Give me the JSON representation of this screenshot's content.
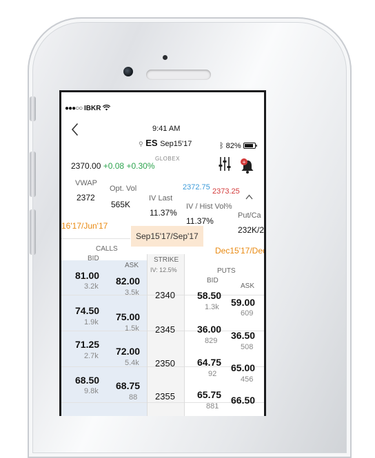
{
  "status_bar": {
    "carrier": "IBKR",
    "time": "9:41 AM",
    "battery": "82%"
  },
  "header": {
    "symbol": "ES",
    "contract": "Sep15'17",
    "exchange": "GLOBEX"
  },
  "quote": {
    "last": "2370.00",
    "change": "+0.08",
    "change_pct": "+0.30%",
    "bid": "2372.75",
    "ask": "2373.25"
  },
  "metrics": [
    {
      "label": "VWAP",
      "value": "2372"
    },
    {
      "label": "Opt. Vol",
      "value": "565K"
    },
    {
      "label": "IV Last",
      "value": "11.37%"
    },
    {
      "label": "IV / Hist Vol%",
      "value": "11.37%"
    },
    {
      "label": "Put/Ca",
      "value": "232K/2"
    }
  ],
  "expiries": {
    "left": "16'17/Jun'17",
    "selected": "Sep15'17/Sep'17",
    "right": "Dec15'17/Dec"
  },
  "columns": {
    "calls": "CALLS",
    "puts": "PUTS",
    "bid": "BID",
    "ask": "ASK",
    "strike": "STRIKE",
    "iv": "IV: 12.5%"
  },
  "rows": [
    {
      "call_bid": "81.00",
      "call_bid_size": "3.2k",
      "call_ask": "82.00",
      "call_ask_size": "3.5k",
      "strike": "2340",
      "put_bid": "58.50",
      "put_bid_size": "1.3k",
      "put_ask": "59.00",
      "put_ask_size": "609"
    },
    {
      "call_bid": "74.50",
      "call_bid_size": "1.9k",
      "call_ask": "75.00",
      "call_ask_size": "1.5k",
      "strike": "2345",
      "put_bid": "36.00",
      "put_bid_size": "829",
      "put_ask": "36.50",
      "put_ask_size": "508"
    },
    {
      "call_bid": "71.25",
      "call_bid_size": "2.7k",
      "call_ask": "72.00",
      "call_ask_size": "5.4k",
      "strike": "2350",
      "put_bid": "64.75",
      "put_bid_size": "92",
      "put_ask": "65.00",
      "put_ask_size": "456"
    },
    {
      "call_bid": "68.50",
      "call_bid_size": "9.8k",
      "call_ask": "68.75",
      "call_ask_size": "88",
      "strike": "2355",
      "put_bid": "65.75",
      "put_bid_size": "881",
      "put_ask": "66.50",
      "put_ask_size": ""
    }
  ],
  "icons": [
    "back-chevron-icon",
    "search-icon",
    "bluetooth-icon",
    "battery-icon",
    "wifi-icon",
    "settings-sliders-icon",
    "alert-bell-icon",
    "collapse-chevron-icon"
  ],
  "colors": {
    "gain": "#2ea44f",
    "loss": "#d33a3a",
    "bid_blue": "#3b9ad9",
    "expiry_orange": "#e98a12",
    "selected_expiry_bg": "#fbe7d2",
    "calls_bg": "#e5ecf5"
  }
}
